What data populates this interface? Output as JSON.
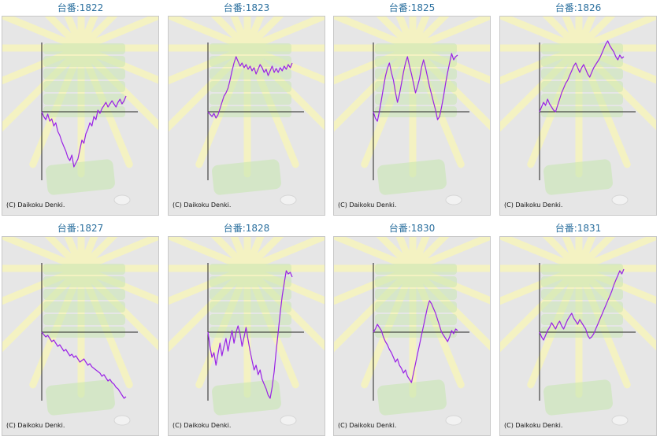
{
  "colors": {
    "line": "#9a22e6",
    "axis": "#222222",
    "panel_bg": "#e6e6e6",
    "title": "#2a6f9e",
    "decor_ray": "#f4f2c2",
    "decor_machine": "#c8e6b2"
  },
  "copyright": "(C) Daikoku Denki.",
  "chart_data": [
    {
      "type": "line",
      "title": "台番:1822",
      "x": [
        0,
        5,
        10,
        15,
        20,
        25,
        30,
        35,
        40,
        45,
        50,
        55,
        60,
        65,
        70,
        75,
        80,
        85,
        90,
        95,
        100,
        105,
        110,
        115,
        120,
        125,
        130,
        135,
        140,
        145,
        150,
        155,
        160,
        165,
        170,
        175,
        180,
        185,
        190,
        195,
        200,
        205,
        210
      ],
      "y": [
        0,
        -6,
        -10,
        -3,
        -12,
        -9,
        -18,
        -14,
        -25,
        -30,
        -38,
        -44,
        -50,
        -58,
        -62,
        -55,
        -70,
        -65,
        -60,
        -48,
        -36,
        -40,
        -28,
        -22,
        -14,
        -18,
        -6,
        -10,
        2,
        -2,
        4,
        8,
        12,
        6,
        10,
        14,
        10,
        6,
        12,
        16,
        10,
        14,
        20
      ]
    },
    {
      "type": "line",
      "title": "台番:1823",
      "x": [
        0,
        5,
        10,
        15,
        20,
        25,
        30,
        35,
        40,
        45,
        50,
        55,
        60,
        65,
        70,
        75,
        80,
        85,
        90,
        95,
        100,
        105,
        110,
        115,
        120,
        125,
        130,
        135,
        140,
        145,
        150,
        155,
        160,
        165,
        170,
        175,
        180,
        185,
        190,
        195,
        200,
        205,
        210
      ],
      "y": [
        0,
        -3,
        -6,
        -2,
        -8,
        -4,
        4,
        12,
        20,
        24,
        30,
        40,
        52,
        62,
        70,
        64,
        58,
        62,
        56,
        60,
        54,
        58,
        52,
        56,
        48,
        54,
        60,
        56,
        50,
        54,
        46,
        52,
        58,
        50,
        55,
        50,
        56,
        52,
        58,
        54,
        60,
        56,
        62
      ]
    },
    {
      "type": "line",
      "title": "台番:1825",
      "x": [
        0,
        5,
        10,
        15,
        20,
        25,
        30,
        35,
        40,
        45,
        50,
        55,
        60,
        65,
        70,
        75,
        80,
        85,
        90,
        95,
        100,
        105,
        110,
        115,
        120,
        125,
        130,
        135,
        140,
        145,
        150,
        155,
        160,
        165,
        170,
        175,
        180,
        185,
        190,
        195,
        200,
        205,
        210
      ],
      "y": [
        0,
        -8,
        -12,
        0,
        15,
        30,
        45,
        55,
        62,
        50,
        40,
        25,
        12,
        22,
        36,
        50,
        62,
        70,
        58,
        48,
        36,
        24,
        32,
        42,
        56,
        66,
        56,
        44,
        32,
        22,
        12,
        2,
        -10,
        -6,
        6,
        20,
        36,
        50,
        62,
        74,
        66,
        70,
        72
      ]
    },
    {
      "type": "line",
      "title": "台番:1826",
      "x": [
        0,
        5,
        10,
        15,
        20,
        25,
        30,
        35,
        40,
        45,
        50,
        55,
        60,
        65,
        70,
        75,
        80,
        85,
        90,
        95,
        100,
        105,
        110,
        115,
        120,
        125,
        130,
        135,
        140,
        145,
        150,
        155,
        160,
        165,
        170,
        175,
        180,
        185,
        190,
        195,
        200,
        205,
        210
      ],
      "y": [
        0,
        6,
        12,
        8,
        16,
        10,
        6,
        2,
        0,
        8,
        16,
        24,
        30,
        36,
        40,
        46,
        52,
        58,
        62,
        56,
        50,
        56,
        60,
        54,
        48,
        44,
        50,
        56,
        60,
        64,
        68,
        74,
        80,
        86,
        90,
        84,
        80,
        76,
        70,
        66,
        72,
        68,
        70
      ]
    },
    {
      "type": "line",
      "title": "台番:1827",
      "x": [
        0,
        5,
        10,
        15,
        20,
        25,
        30,
        35,
        40,
        45,
        50,
        55,
        60,
        65,
        70,
        75,
        80,
        85,
        90,
        95,
        100,
        105,
        110,
        115,
        120,
        125,
        130,
        135,
        140,
        145,
        150,
        155,
        160,
        165,
        170,
        175,
        180,
        185,
        190,
        195,
        200,
        205,
        210
      ],
      "y": [
        0,
        -3,
        -6,
        -4,
        -8,
        -12,
        -10,
        -14,
        -18,
        -16,
        -20,
        -24,
        -22,
        -26,
        -30,
        -28,
        -32,
        -30,
        -34,
        -38,
        -36,
        -34,
        -38,
        -42,
        -40,
        -44,
        -46,
        -48,
        -50,
        -52,
        -56,
        -54,
        -58,
        -62,
        -60,
        -64,
        -66,
        -70,
        -72,
        -76,
        -80,
        -84,
        -82
      ]
    },
    {
      "type": "line",
      "title": "台番:1828",
      "x": [
        0,
        5,
        10,
        15,
        20,
        25,
        30,
        35,
        40,
        45,
        50,
        55,
        60,
        65,
        70,
        75,
        80,
        85,
        90,
        95,
        100,
        105,
        110,
        115,
        120,
        125,
        130,
        135,
        140,
        145,
        150,
        155,
        160,
        165,
        170,
        175,
        180,
        185,
        190,
        195,
        200,
        205,
        210
      ],
      "y": [
        0,
        -18,
        -32,
        -26,
        -42,
        -28,
        -14,
        -30,
        -18,
        -8,
        -24,
        -10,
        2,
        -14,
        0,
        8,
        -2,
        -18,
        -6,
        6,
        -10,
        -24,
        -36,
        -48,
        -42,
        -54,
        -48,
        -60,
        -66,
        -72,
        -80,
        -84,
        -70,
        -50,
        -24,
        0,
        24,
        46,
        62,
        78,
        74,
        76,
        70
      ]
    },
    {
      "type": "line",
      "title": "台番:1830",
      "x": [
        0,
        5,
        10,
        15,
        20,
        25,
        30,
        35,
        40,
        45,
        50,
        55,
        60,
        65,
        70,
        75,
        80,
        85,
        90,
        95,
        100,
        105,
        110,
        115,
        120,
        125,
        130,
        135,
        140,
        145,
        150,
        155,
        160,
        165,
        170,
        175,
        180,
        185,
        190,
        195,
        200,
        205,
        210
      ],
      "y": [
        0,
        4,
        10,
        6,
        2,
        -6,
        -12,
        -16,
        -22,
        -26,
        -32,
        -38,
        -34,
        -42,
        -46,
        -52,
        -48,
        -56,
        -60,
        -64,
        -52,
        -40,
        -28,
        -16,
        -4,
        8,
        20,
        32,
        40,
        36,
        30,
        24,
        16,
        8,
        0,
        -4,
        -8,
        -12,
        -6,
        2,
        -2,
        4,
        2
      ]
    },
    {
      "type": "line",
      "title": "台番:1831",
      "x": [
        0,
        5,
        10,
        15,
        20,
        25,
        30,
        35,
        40,
        45,
        50,
        55,
        60,
        65,
        70,
        75,
        80,
        85,
        90,
        95,
        100,
        105,
        110,
        115,
        120,
        125,
        130,
        135,
        140,
        145,
        150,
        155,
        160,
        165,
        170,
        175,
        180,
        185,
        190,
        195,
        200,
        205,
        210
      ],
      "y": [
        0,
        -6,
        -10,
        -4,
        2,
        6,
        12,
        8,
        4,
        10,
        14,
        8,
        4,
        10,
        16,
        20,
        24,
        18,
        14,
        10,
        16,
        12,
        8,
        4,
        -4,
        -8,
        -6,
        -2,
        4,
        10,
        16,
        22,
        28,
        34,
        40,
        46,
        52,
        60,
        66,
        72,
        78,
        74,
        80
      ]
    }
  ]
}
